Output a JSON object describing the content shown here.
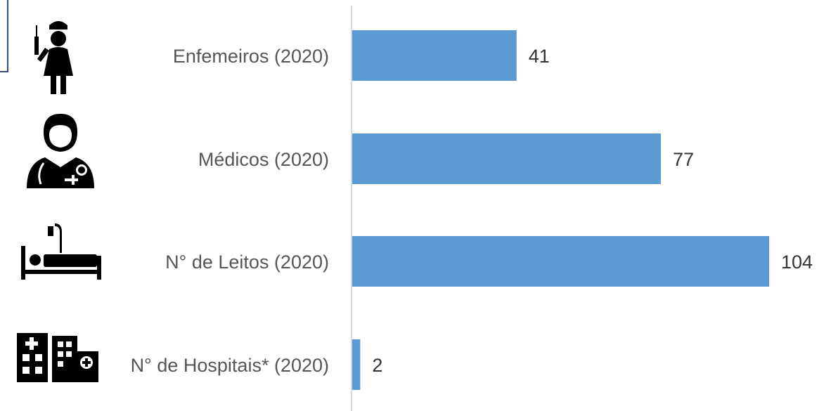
{
  "chart_data": {
    "type": "bar",
    "orientation": "horizontal",
    "categories": [
      "Enfemeiros (2020)",
      "Médicos (2020)",
      "N° de Leitos (2020)",
      "N° de Hospitais* (2020)"
    ],
    "values": [
      41,
      77,
      104,
      2
    ],
    "data_labels": [
      "41",
      "77",
      "104",
      "2"
    ],
    "icons": [
      "nurse-icon",
      "doctor-icon",
      "hospital-bed-icon",
      "hospital-building-icon"
    ],
    "xlim": [
      0,
      104
    ],
    "grid": false,
    "bar_color": "#5b9bd5",
    "axis_color": "#d9d9d9"
  }
}
